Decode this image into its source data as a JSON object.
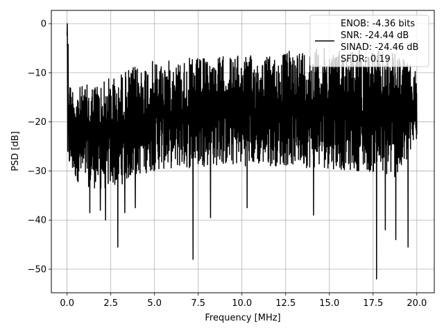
{
  "chart_data": {
    "type": "line",
    "xlabel": "Frequency [MHz]",
    "ylabel": "PSD [dB]",
    "xlim": [
      -0.9,
      21.0
    ],
    "ylim": [
      -54.8,
      2.7
    ],
    "x_ticks": [
      0.0,
      2.5,
      5.0,
      7.5,
      10.0,
      12.5,
      15.0,
      17.5,
      20.0
    ],
    "x_tick_labels": [
      "0.0",
      "2.5",
      "5.0",
      "7.5",
      "10.0",
      "12.5",
      "15.0",
      "17.5",
      "20.0"
    ],
    "y_ticks": [
      0,
      -10,
      -20,
      -30,
      -40,
      -50
    ],
    "y_tick_labels": [
      "0",
      "−10",
      "−20",
      "−30",
      "−40",
      "−50"
    ],
    "grid": true,
    "legend_position": "upper-right",
    "series": [
      {
        "name": "ENOB: -4.36 bits\nSNR: -24.44 dB\nSINAD: -24.46 dB\nSFDR: 0.19",
        "legend_lines": [
          "ENOB: -4.36 bits",
          "SNR: -24.44 dB",
          "SINAD: -24.46 dB",
          "SFDR: 0.19"
        ],
        "color": "#000000",
        "x_range": [
          0.0,
          20.0
        ],
        "num_points": 2000,
        "envelope_x": [
          0.0,
          0.05,
          0.1,
          0.2,
          0.5,
          1.0,
          2.0,
          3.0,
          4.0,
          5.0,
          6.0,
          7.0,
          8.0,
          9.0,
          10.0,
          11.0,
          12.0,
          13.0,
          14.0,
          15.0,
          16.0,
          17.0,
          18.0,
          19.0,
          20.0
        ],
        "envelope_upper": [
          -2.5,
          0.0,
          -9.0,
          -12.0,
          -13.0,
          -12.5,
          -11.5,
          -10.0,
          -8.5,
          -7.5,
          -7.5,
          -7.0,
          -7.0,
          -6.5,
          -6.5,
          -6.5,
          -6.5,
          -5.0,
          -5.0,
          -5.0,
          -5.0,
          -5.0,
          -5.5,
          -6.0,
          -10.0
        ],
        "envelope_lower": [
          -22.0,
          -26.0,
          -30.0,
          -30.5,
          -32.0,
          -33.0,
          -34.0,
          -33.0,
          -31.0,
          -30.0,
          -29.5,
          -29.5,
          -29.0,
          -29.0,
          -29.0,
          -29.0,
          -29.0,
          -29.0,
          -29.5,
          -29.5,
          -30.0,
          -30.0,
          -31.0,
          -32.0,
          -24.0
        ],
        "dips": [
          {
            "x": 1.3,
            "y": -38.5
          },
          {
            "x": 1.9,
            "y": -38.0
          },
          {
            "x": 2.2,
            "y": -40.0
          },
          {
            "x": 2.9,
            "y": -45.5
          },
          {
            "x": 3.3,
            "y": -38.5
          },
          {
            "x": 3.9,
            "y": -37.5
          },
          {
            "x": 7.2,
            "y": -48.0
          },
          {
            "x": 8.2,
            "y": -39.5
          },
          {
            "x": 10.3,
            "y": -37.5
          },
          {
            "x": 14.1,
            "y": -39.0
          },
          {
            "x": 17.7,
            "y": -52.0
          },
          {
            "x": 18.2,
            "y": -42.0
          },
          {
            "x": 18.8,
            "y": -44.0
          },
          {
            "x": 19.5,
            "y": -45.5
          }
        ]
      }
    ]
  }
}
